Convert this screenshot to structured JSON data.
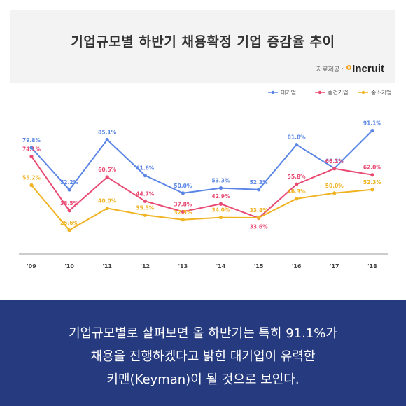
{
  "title": "기업규모별 하반기 채용확정 기업 증감율 추이",
  "source": {
    "label": "자료제공 :",
    "logo_text": "Incruit"
  },
  "caption": {
    "line1": "기업규모별로 살펴보면 올 하반기는 특히 91.1%가",
    "line2": "채용을 진행하겠다고 밝힌 대기업이 유력한",
    "line3": "키맨(Keyman)이 될 것으로 보인다."
  },
  "colors": {
    "large": "#5b86e5",
    "mid": "#e84a72",
    "small": "#f0b323",
    "bottom_band": "#253a7f",
    "title_band": "#f3f3f3"
  },
  "chart_data": {
    "type": "line",
    "categories": [
      "'09",
      "'10",
      "'11",
      "'12",
      "'13",
      "'14",
      "'15",
      "'16",
      "'17",
      "'18"
    ],
    "ylim": [
      20,
      95
    ],
    "grid": false,
    "legend_position": "top-right",
    "series": [
      {
        "name": "대기업",
        "color": "#5b86e5",
        "values": [
          79.8,
          52.2,
          85.1,
          61.6,
          50.0,
          53.3,
          52.3,
          81.8,
          66.3,
          91.1
        ],
        "labels": [
          "79.8%",
          "52.2%",
          "85.1%",
          "61.6%",
          "50.0%",
          "53.3%",
          "52.3%",
          "81.8%",
          "66.3%",
          "91.1%"
        ]
      },
      {
        "name": "중견기업",
        "color": "#e84a72",
        "values": [
          74.1,
          38.5,
          60.5,
          44.7,
          37.8,
          42.9,
          33.6,
          55.8,
          66.1,
          62.0
        ],
        "labels": [
          "74.1%",
          "38.5%",
          "60.5%",
          "44.7%",
          "37.8%",
          "42.9%",
          "33.6%",
          "55.8%",
          "66.1%",
          "62.0%"
        ]
      },
      {
        "name": "중소기업",
        "color": "#f0b323",
        "values": [
          55.2,
          25.6,
          40.0,
          35.5,
          32.5,
          34.0,
          33.8,
          46.3,
          50.0,
          52.3
        ],
        "labels": [
          "55.2%",
          "25.6%",
          "40.0%",
          "35.5%",
          "32.5%",
          "34.0%",
          "33.8%",
          "46.3%",
          "50.0%",
          "52.3%"
        ]
      }
    ]
  }
}
